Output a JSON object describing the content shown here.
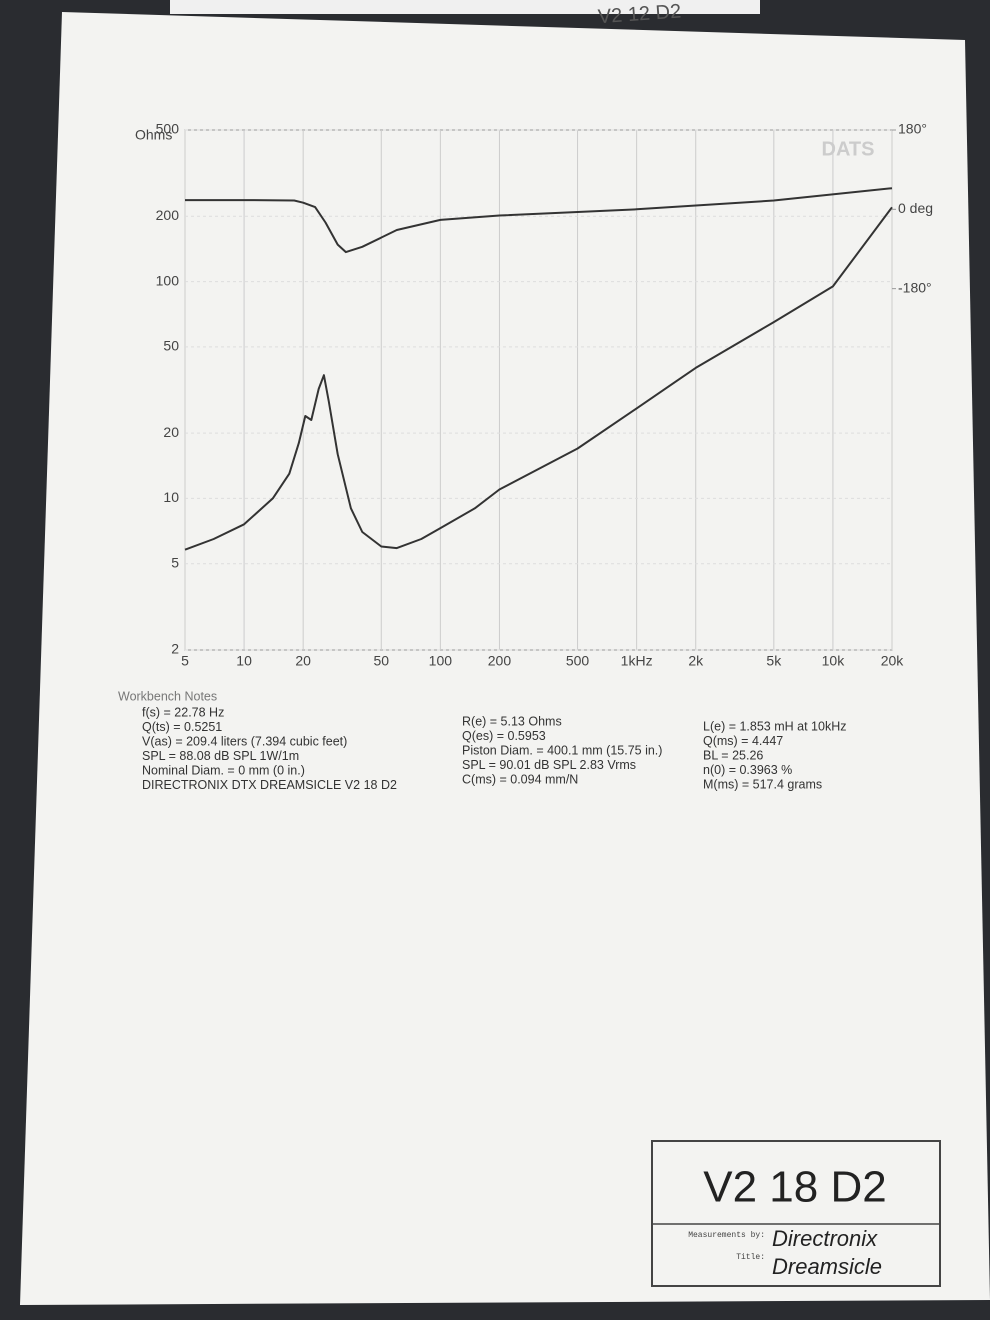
{
  "chart_data": {
    "type": "line",
    "watermark": "DATS",
    "y_label": "Ohms",
    "xscale": "log",
    "yscale": "log",
    "xlim": [
      5,
      20000
    ],
    "ylim": [
      2,
      500
    ],
    "y2lim": [
      -1000,
      180
    ],
    "xticks": [
      5,
      10,
      20,
      50,
      100,
      200,
      500,
      {
        "value": 1000,
        "label": "1kHz"
      },
      {
        "value": 2000,
        "label": "2k"
      },
      {
        "value": 5000,
        "label": "5k"
      },
      {
        "value": 10000,
        "label": "10k"
      },
      {
        "value": 20000,
        "label": "20k"
      }
    ],
    "yticks": [
      2,
      5,
      10,
      20,
      50,
      100,
      200,
      500
    ],
    "y2ticks": [
      {
        "value": 180,
        "label": "180°"
      },
      {
        "value": 0,
        "label": "0 deg"
      },
      {
        "value": -180,
        "label": "-180°"
      }
    ],
    "grid": true,
    "series": [
      {
        "color": "#333333",
        "x": [
          5,
          7,
          10,
          14,
          17,
          19,
          20.5,
          22,
          24,
          25.5,
          27,
          30,
          35,
          40,
          50,
          60,
          80,
          100,
          150,
          200,
          500,
          1000,
          2000,
          5000,
          10000,
          20000
        ],
        "values": [
          5.8,
          6.5,
          7.6,
          10,
          13,
          18,
          24,
          23,
          32,
          37,
          28,
          16,
          9,
          7,
          6,
          5.9,
          6.5,
          7.3,
          9,
          11,
          17,
          26,
          40,
          65,
          95,
          220
        ]
      },
      {
        "color": "#333333",
        "axis": "y2",
        "x": [
          5,
          10,
          18,
          20,
          23,
          26,
          30,
          33,
          40,
          60,
          100,
          200,
          500,
          1000,
          5000,
          20000
        ],
        "values": [
          21,
          21,
          20,
          15,
          5,
          -30,
          -80,
          -97,
          -85,
          -47,
          -24,
          -14,
          -6,
          0,
          20,
          48
        ]
      }
    ]
  },
  "notes": {
    "heading": "Workbench Notes",
    "columns": [
      [
        "f(s) = 22.78 Hz",
        "Q(ts) = 0.5251",
        "V(as) = 209.4 liters  (7.394 cubic feet)",
        "SPL = 88.08 dB SPL 1W/1m",
        "Nominal Diam. = 0 mm (0 in.)",
        "DIRECTRONIX DTX DREAMSICLE V2 18 D2"
      ],
      [
        "R(e) = 5.13 Ohms",
        "Q(es) = 0.5953",
        "Piston Diam. = 400.1 mm (15.75 in.)",
        "SPL = 90.01 dB SPL 2.83 Vrms",
        "C(ms) = 0.094 mm/N"
      ],
      [
        "L(e) = 1.853 mH at 10kHz",
        "Q(ms) = 4.447",
        "BL = 25.26",
        "n(0) = 0.3963 %",
        "M(ms) = 517.4 grams"
      ]
    ]
  },
  "label_box": {
    "heading": "V2 18 D2",
    "measured_by_label": "Measurements by:",
    "measured_by": "Directronix",
    "title_label": "Title:",
    "title": "Dreamsicle"
  },
  "back_sheet": "V2 12 D2"
}
